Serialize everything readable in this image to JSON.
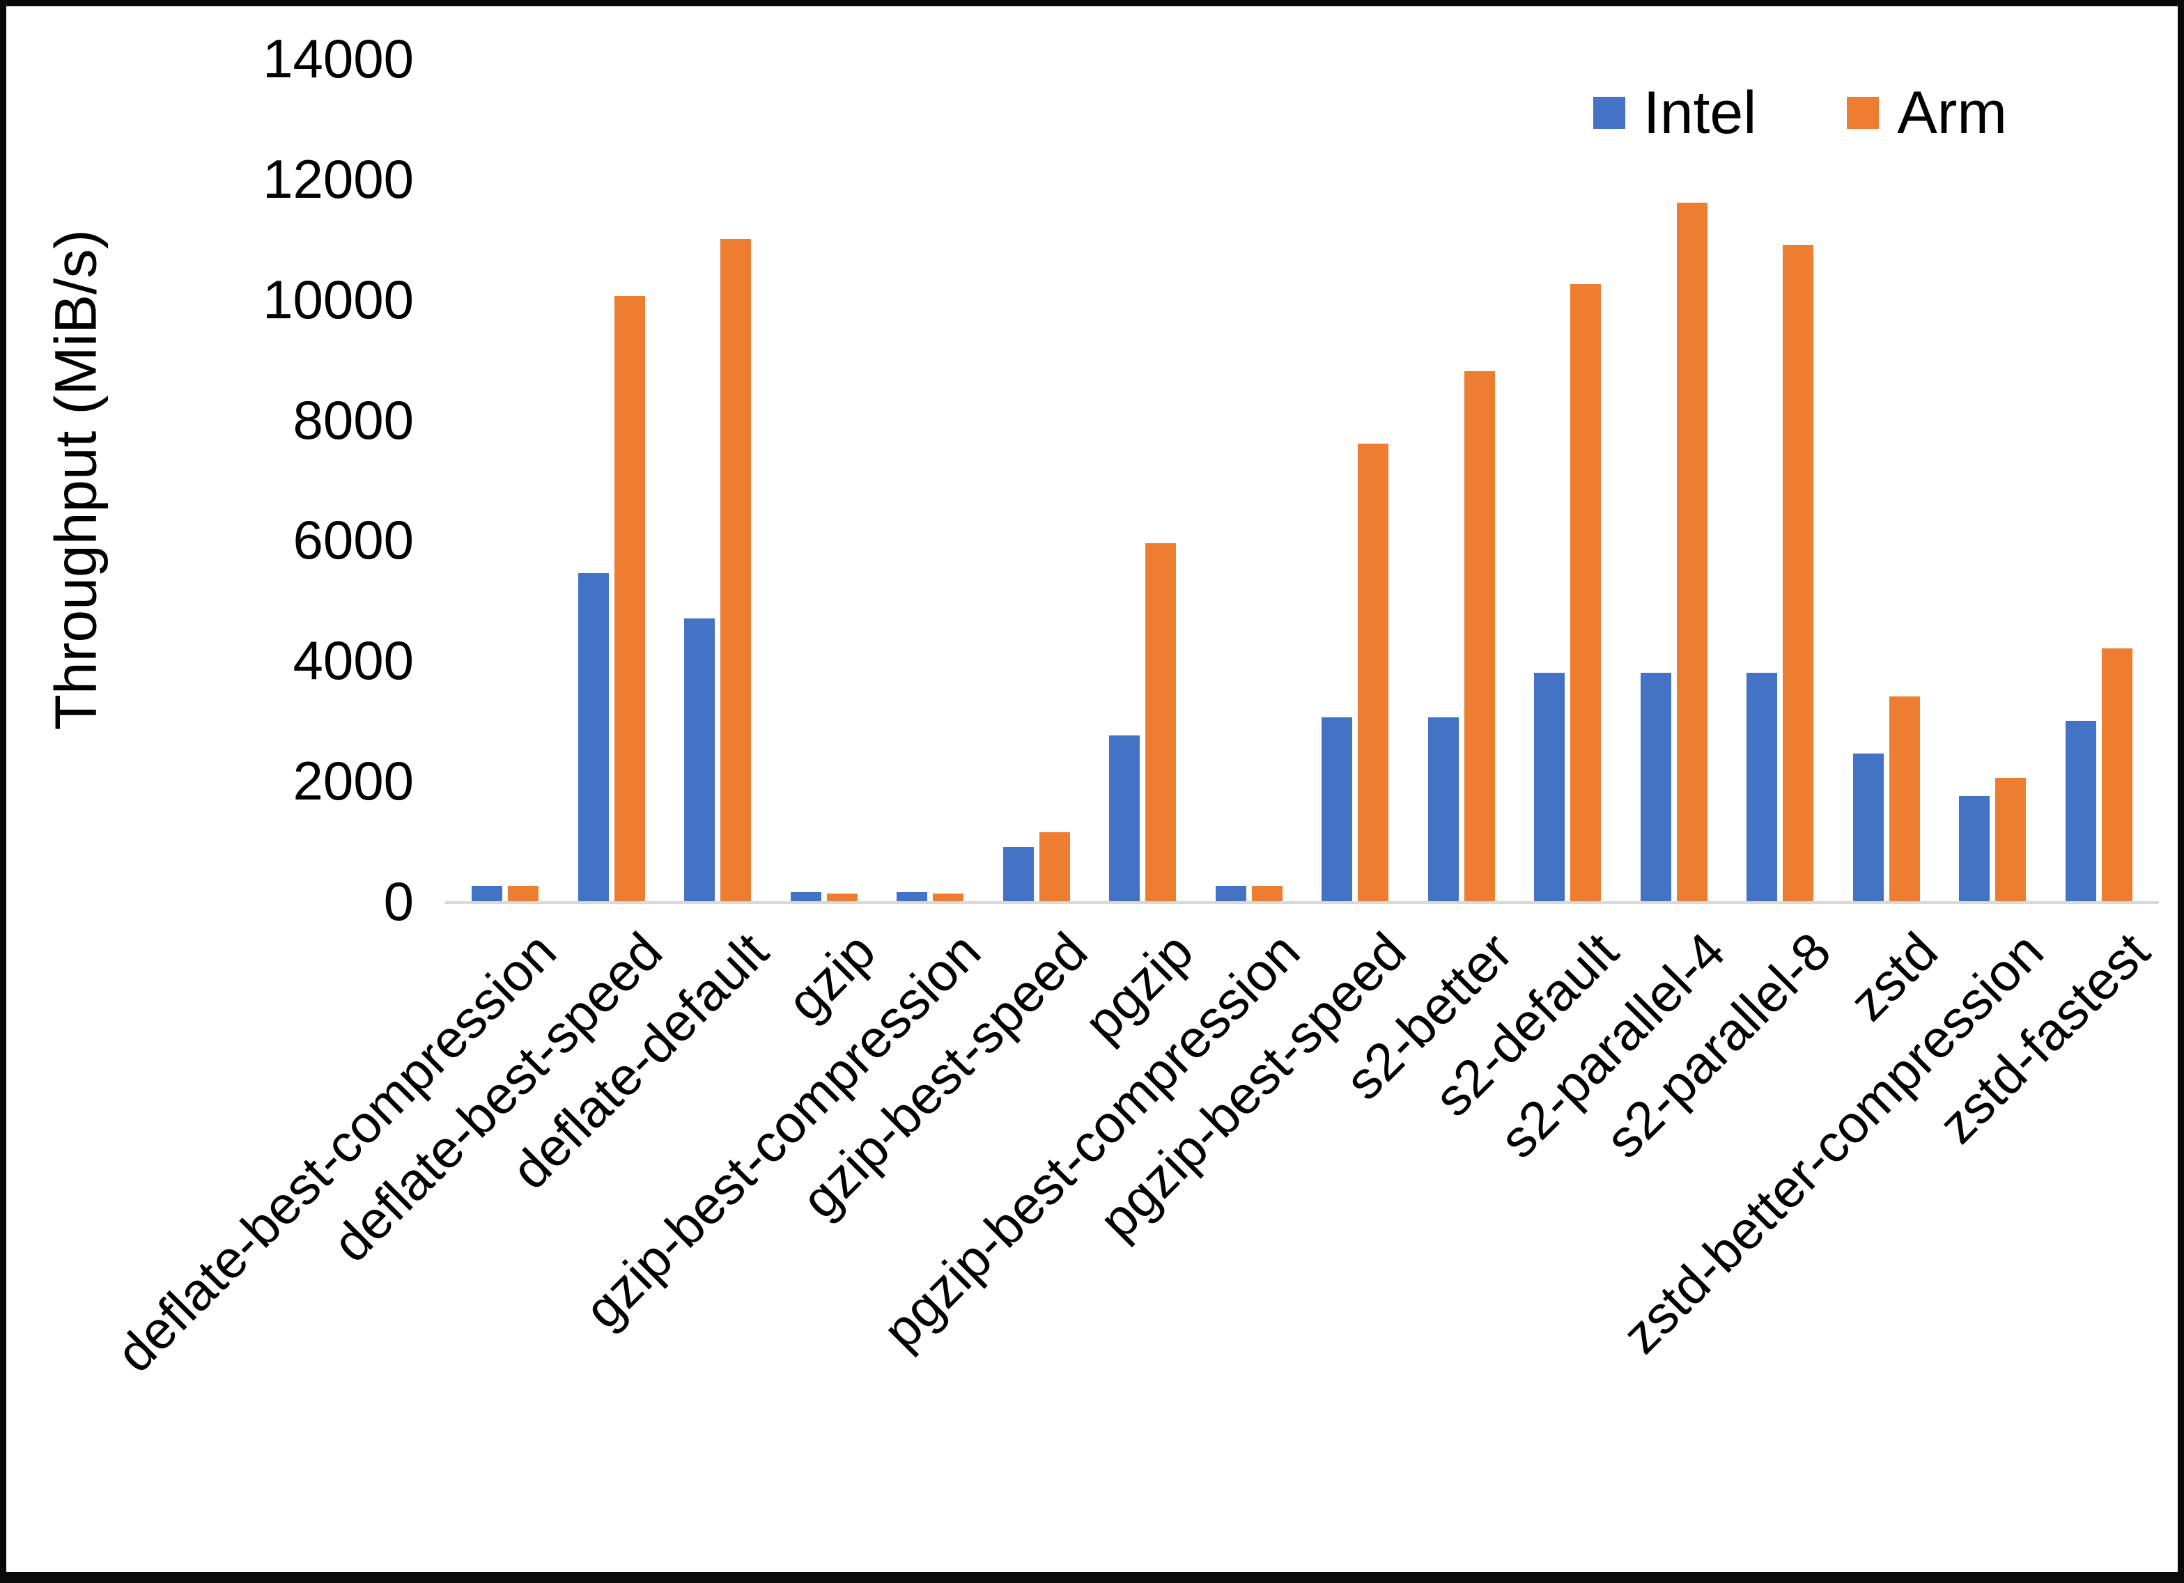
{
  "chart_data": {
    "type": "bar",
    "title": "",
    "xlabel": "",
    "ylabel": "Throughput (MiB/s)",
    "ylim": [
      0,
      14000
    ],
    "ytick_step": 2000,
    "grid": false,
    "legend_position": "top-right",
    "categories": [
      "deflate-best-compression",
      "deflate-best-speed",
      "deflate-default",
      "gzip",
      "gzip-best-compression",
      "gzip-best-speed",
      "pgzip",
      "pgzip-best-compression",
      "pgzip-best-speed",
      "s2-better",
      "s2-default",
      "s2-parallel-4",
      "s2-parallel-8",
      "zstd",
      "zstd-better-compression",
      "zstd-fastest"
    ],
    "series": [
      {
        "name": "Intel",
        "color": "#4472C4",
        "values": [
          250,
          5450,
          4700,
          150,
          150,
          900,
          2750,
          250,
          3050,
          3050,
          3800,
          3800,
          3800,
          2450,
          1750,
          3000
        ]
      },
      {
        "name": "Arm",
        "color": "#ED7D31",
        "values": [
          250,
          10050,
          11000,
          130,
          130,
          1150,
          5950,
          250,
          7600,
          8800,
          10250,
          11600,
          10900,
          3400,
          2050,
          4200
        ]
      }
    ]
  },
  "colors": {
    "axis_line": "#D9D9D9",
    "text": "#000000",
    "background": "#FFFFFF",
    "frame": "#0A0A0A"
  }
}
